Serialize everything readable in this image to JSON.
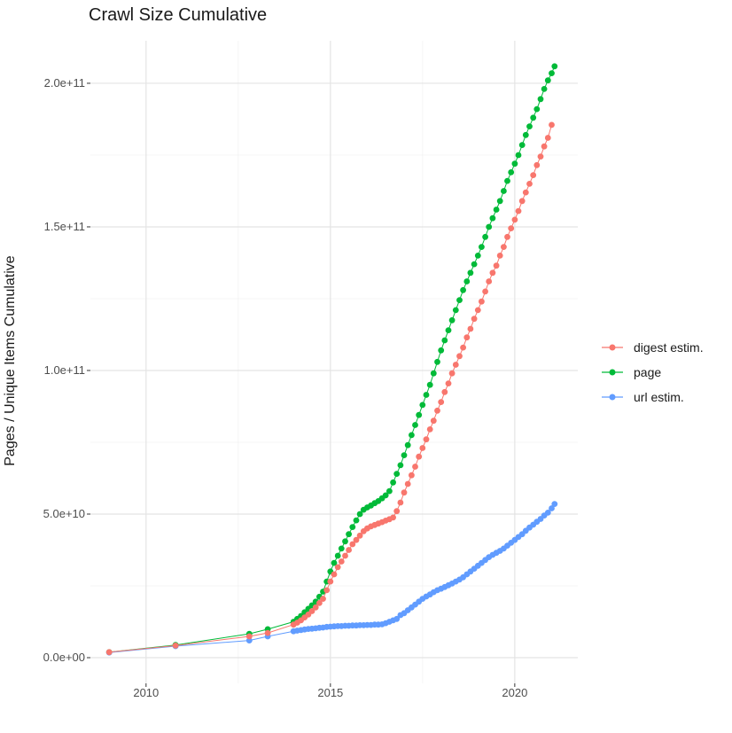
{
  "chart_data": {
    "type": "scatter",
    "title": "Crawl Size Cumulative",
    "xlabel": "",
    "ylabel": "Pages / Unique Items Cumulative",
    "values_unit": "1e9",
    "grid": "on",
    "legend_position": "right",
    "axes": {
      "x": {
        "domain": [
          2008.49,
          2021.71
        ],
        "major_ticks": [
          2010,
          2015,
          2020
        ],
        "minor_ticks": [
          2012.5,
          2017.5
        ],
        "tick_labels": [
          "2010",
          "2015",
          "2020"
        ]
      },
      "y": {
        "domain_e9": [
          -8.95,
          214.8
        ],
        "major_ticks_e9": [
          0,
          50,
          100,
          150,
          200
        ],
        "minor_ticks_e9": [
          25,
          75,
          125,
          175
        ],
        "tick_labels": [
          "0.0e+00",
          "5.0e+10",
          "1.0e+11",
          "1.5e+11",
          "2.0e+11"
        ]
      }
    },
    "series": [
      {
        "name": "digest estim.",
        "color": "#F8766D",
        "points": [
          [
            2009.0,
            1.9
          ],
          [
            2010.8,
            4.2
          ],
          [
            2012.8,
            7.4
          ],
          [
            2013.3,
            8.6
          ],
          [
            2014.0,
            11.5
          ],
          [
            2014.1,
            12.2
          ],
          [
            2014.2,
            13.0
          ],
          [
            2014.3,
            14.0
          ],
          [
            2014.4,
            15.0
          ],
          [
            2014.5,
            16.2
          ],
          [
            2014.6,
            17.5
          ],
          [
            2014.7,
            19.0
          ],
          [
            2014.8,
            20.5
          ],
          [
            2014.9,
            23.5
          ],
          [
            2015.0,
            26.5
          ],
          [
            2015.1,
            29.0
          ],
          [
            2015.2,
            31.5
          ],
          [
            2015.3,
            33.5
          ],
          [
            2015.4,
            35.5
          ],
          [
            2015.5,
            37.5
          ],
          [
            2015.6,
            39.5
          ],
          [
            2015.7,
            41.0
          ],
          [
            2015.8,
            42.5
          ],
          [
            2015.9,
            44.0
          ],
          [
            2016.0,
            45.0
          ],
          [
            2016.1,
            45.7
          ],
          [
            2016.2,
            46.2
          ],
          [
            2016.3,
            46.7
          ],
          [
            2016.4,
            47.2
          ],
          [
            2016.5,
            47.7
          ],
          [
            2016.6,
            48.2
          ],
          [
            2016.7,
            48.8
          ],
          [
            2016.8,
            51.0
          ],
          [
            2016.9,
            54.0
          ],
          [
            2017.0,
            57.5
          ],
          [
            2017.1,
            60.5
          ],
          [
            2017.2,
            63.5
          ],
          [
            2017.3,
            66.5
          ],
          [
            2017.4,
            70.0
          ],
          [
            2017.5,
            73.0
          ],
          [
            2017.6,
            76.0
          ],
          [
            2017.7,
            79.5
          ],
          [
            2017.8,
            82.5
          ],
          [
            2017.9,
            86.0
          ],
          [
            2018.0,
            89.0
          ],
          [
            2018.1,
            92.5
          ],
          [
            2018.2,
            95.5
          ],
          [
            2018.3,
            99.0
          ],
          [
            2018.4,
            102.0
          ],
          [
            2018.5,
            105.0
          ],
          [
            2018.6,
            108.0
          ],
          [
            2018.7,
            111.5
          ],
          [
            2018.8,
            114.5
          ],
          [
            2018.9,
            118.0
          ],
          [
            2019.0,
            121.0
          ],
          [
            2019.1,
            124.0
          ],
          [
            2019.2,
            127.5
          ],
          [
            2019.3,
            131.0
          ],
          [
            2019.4,
            134.0
          ],
          [
            2019.5,
            136.5
          ],
          [
            2019.6,
            140.0
          ],
          [
            2019.7,
            143.0
          ],
          [
            2019.8,
            146.5
          ],
          [
            2019.9,
            149.5
          ],
          [
            2020.0,
            152.5
          ],
          [
            2020.1,
            155.5
          ],
          [
            2020.2,
            159.0
          ],
          [
            2020.3,
            162.0
          ],
          [
            2020.4,
            165.0
          ],
          [
            2020.5,
            168.0
          ],
          [
            2020.6,
            171.5
          ],
          [
            2020.7,
            174.5
          ],
          [
            2020.8,
            178.0
          ],
          [
            2020.9,
            181.0
          ],
          [
            2021.0,
            185.5
          ]
        ]
      },
      {
        "name": "page",
        "color": "#00BA38",
        "points": [
          [
            2009.0,
            1.9
          ],
          [
            2010.8,
            4.4
          ],
          [
            2012.8,
            8.3
          ],
          [
            2013.3,
            9.9
          ],
          [
            2014.0,
            12.5
          ],
          [
            2014.1,
            13.5
          ],
          [
            2014.2,
            14.5
          ],
          [
            2014.3,
            15.8
          ],
          [
            2014.4,
            17.0
          ],
          [
            2014.5,
            18.2
          ],
          [
            2014.6,
            19.5
          ],
          [
            2014.7,
            21.2
          ],
          [
            2014.8,
            23.0
          ],
          [
            2014.9,
            26.5
          ],
          [
            2015.0,
            30.0
          ],
          [
            2015.1,
            33.0
          ],
          [
            2015.2,
            35.5
          ],
          [
            2015.3,
            38.0
          ],
          [
            2015.4,
            40.5
          ],
          [
            2015.5,
            43.0
          ],
          [
            2015.6,
            45.5
          ],
          [
            2015.7,
            47.8
          ],
          [
            2015.8,
            50.0
          ],
          [
            2015.9,
            51.5
          ],
          [
            2016.0,
            52.3
          ],
          [
            2016.1,
            53.0
          ],
          [
            2016.2,
            53.8
          ],
          [
            2016.3,
            54.5
          ],
          [
            2016.4,
            55.5
          ],
          [
            2016.5,
            56.5
          ],
          [
            2016.6,
            58.0
          ],
          [
            2016.7,
            61.0
          ],
          [
            2016.8,
            64.0
          ],
          [
            2016.9,
            67.0
          ],
          [
            2017.0,
            70.5
          ],
          [
            2017.1,
            74.0
          ],
          [
            2017.2,
            77.5
          ],
          [
            2017.3,
            81.0
          ],
          [
            2017.4,
            84.5
          ],
          [
            2017.5,
            88.0
          ],
          [
            2017.6,
            91.5
          ],
          [
            2017.7,
            95.0
          ],
          [
            2017.8,
            99.0
          ],
          [
            2017.9,
            103.0
          ],
          [
            2018.0,
            107.0
          ],
          [
            2018.1,
            110.5
          ],
          [
            2018.2,
            114.0
          ],
          [
            2018.3,
            117.5
          ],
          [
            2018.4,
            121.0
          ],
          [
            2018.5,
            124.5
          ],
          [
            2018.6,
            128.0
          ],
          [
            2018.7,
            131.0
          ],
          [
            2018.8,
            134.0
          ],
          [
            2018.9,
            137.0
          ],
          [
            2019.0,
            140.0
          ],
          [
            2019.1,
            143.0
          ],
          [
            2019.2,
            146.5
          ],
          [
            2019.3,
            150.0
          ],
          [
            2019.4,
            153.0
          ],
          [
            2019.5,
            156.0
          ],
          [
            2019.6,
            159.0
          ],
          [
            2019.7,
            162.5
          ],
          [
            2019.8,
            166.0
          ],
          [
            2019.9,
            169.0
          ],
          [
            2020.0,
            172.0
          ],
          [
            2020.1,
            175.0
          ],
          [
            2020.2,
            178.5
          ],
          [
            2020.3,
            182.0
          ],
          [
            2020.4,
            185.0
          ],
          [
            2020.5,
            188.0
          ],
          [
            2020.6,
            191.0
          ],
          [
            2020.7,
            194.5
          ],
          [
            2020.8,
            198.0
          ],
          [
            2020.9,
            201.0
          ],
          [
            2021.0,
            203.5
          ],
          [
            2021.08,
            205.9
          ]
        ]
      },
      {
        "name": "url estim.",
        "color": "#619CFF",
        "points": [
          [
            2009.0,
            1.8
          ],
          [
            2010.8,
            4.0
          ],
          [
            2012.8,
            6.0
          ],
          [
            2013.3,
            7.4
          ],
          [
            2014.0,
            9.2
          ],
          [
            2014.1,
            9.4
          ],
          [
            2014.2,
            9.6
          ],
          [
            2014.3,
            9.8
          ],
          [
            2014.4,
            10.0
          ],
          [
            2014.5,
            10.1
          ],
          [
            2014.6,
            10.2
          ],
          [
            2014.7,
            10.4
          ],
          [
            2014.8,
            10.5
          ],
          [
            2014.9,
            10.7
          ],
          [
            2015.0,
            10.8
          ],
          [
            2015.1,
            10.9
          ],
          [
            2015.2,
            11.0
          ],
          [
            2015.3,
            11.0
          ],
          [
            2015.4,
            11.1
          ],
          [
            2015.5,
            11.1
          ],
          [
            2015.6,
            11.2
          ],
          [
            2015.7,
            11.2
          ],
          [
            2015.8,
            11.3
          ],
          [
            2015.9,
            11.3
          ],
          [
            2016.0,
            11.4
          ],
          [
            2016.1,
            11.4
          ],
          [
            2016.2,
            11.5
          ],
          [
            2016.3,
            11.5
          ],
          [
            2016.4,
            11.6
          ],
          [
            2016.5,
            12.0
          ],
          [
            2016.6,
            12.5
          ],
          [
            2016.7,
            13.0
          ],
          [
            2016.8,
            13.5
          ],
          [
            2016.9,
            14.8
          ],
          [
            2017.0,
            15.5
          ],
          [
            2017.1,
            16.5
          ],
          [
            2017.2,
            17.5
          ],
          [
            2017.3,
            18.5
          ],
          [
            2017.4,
            19.5
          ],
          [
            2017.5,
            20.5
          ],
          [
            2017.6,
            21.3
          ],
          [
            2017.7,
            22.0
          ],
          [
            2017.8,
            22.8
          ],
          [
            2017.9,
            23.5
          ],
          [
            2018.0,
            24.0
          ],
          [
            2018.1,
            24.6
          ],
          [
            2018.2,
            25.2
          ],
          [
            2018.3,
            25.8
          ],
          [
            2018.4,
            26.5
          ],
          [
            2018.5,
            27.2
          ],
          [
            2018.6,
            28.0
          ],
          [
            2018.7,
            29.0
          ],
          [
            2018.8,
            30.0
          ],
          [
            2018.9,
            31.0
          ],
          [
            2019.0,
            32.0
          ],
          [
            2019.1,
            33.0
          ],
          [
            2019.2,
            34.0
          ],
          [
            2019.3,
            35.0
          ],
          [
            2019.4,
            35.8
          ],
          [
            2019.5,
            36.5
          ],
          [
            2019.6,
            37.2
          ],
          [
            2019.7,
            38.0
          ],
          [
            2019.8,
            39.0
          ],
          [
            2019.9,
            40.0
          ],
          [
            2020.0,
            41.0
          ],
          [
            2020.1,
            42.0
          ],
          [
            2020.2,
            43.0
          ],
          [
            2020.3,
            44.2
          ],
          [
            2020.4,
            45.3
          ],
          [
            2020.5,
            46.3
          ],
          [
            2020.6,
            47.3
          ],
          [
            2020.7,
            48.3
          ],
          [
            2020.8,
            49.5
          ],
          [
            2020.9,
            50.5
          ],
          [
            2021.0,
            52.0
          ],
          [
            2021.08,
            53.5
          ]
        ]
      }
    ]
  }
}
